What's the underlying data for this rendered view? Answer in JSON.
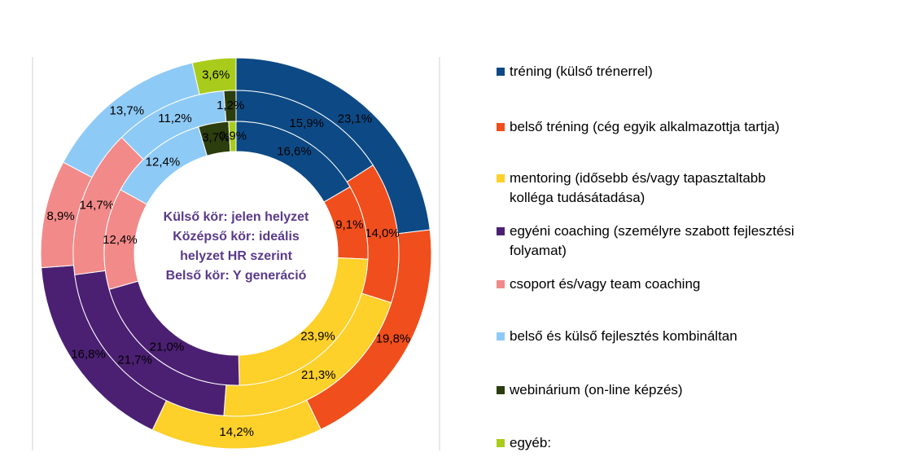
{
  "chart_data": {
    "type": "doughnut",
    "categories": [
      "tréning (külső trénerrel)",
      "belső tréning (cég egyik alkalmazottja tartja)",
      "mentoring (idősebb és/vagy tapasztaltabb kolléga tudásátadása)",
      "egyéni coaching (személyre szabott fejlesztési folyamat)",
      "csoport és/vagy team coaching",
      "belső és külső fejlesztés kombináltan",
      "webinárium (on-line képzés)",
      "egyéb:"
    ],
    "colors": [
      "#0d4a85",
      "#f04e1c",
      "#fdd02a",
      "#4b2072",
      "#f28a8a",
      "#8ecaf6",
      "#2c3d0e",
      "#a9cc1c"
    ],
    "series": [
      {
        "values": [
          23.1,
          19.8,
          14.2,
          16.8,
          8.9,
          13.7,
          null,
          3.6
        ],
        "value_labels": [
          "23,1%",
          "19,8%",
          "14,2%",
          "16,8%",
          "8,9%",
          "13,7%",
          null,
          "3,6%"
        ]
      },
      {
        "values": [
          15.9,
          14.0,
          21.3,
          21.7,
          14.7,
          11.2,
          1.2,
          null
        ],
        "value_labels": [
          "15,9%",
          "14,0%",
          "21,3%",
          "21,7%",
          "14,7%",
          "11,2%",
          "1,2%",
          null
        ]
      },
      {
        "values": [
          16.6,
          9.1,
          23.9,
          21.0,
          12.4,
          12.4,
          3.7,
          0.9
        ],
        "value_labels": [
          "16,6%",
          "9,1%",
          "23,9%",
          "21,0%",
          "12,4%",
          "12,4%",
          "3,7%",
          "0,9%"
        ]
      }
    ],
    "annotation": [
      "Külső kör: jelen helyzet",
      "Középső kör: ideális",
      "helyzet HR szerint",
      "Belső kör: Y generáció"
    ],
    "legend": "right"
  }
}
